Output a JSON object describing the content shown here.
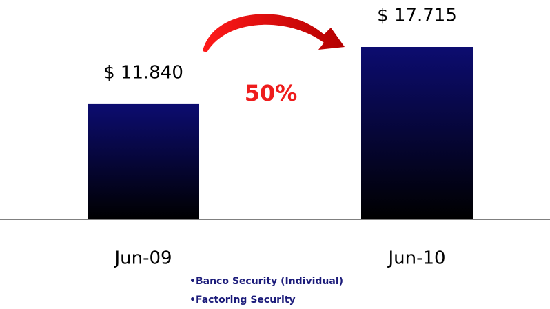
{
  "chart_data": {
    "type": "bar",
    "categories": [
      "Jun-09",
      "Jun-10"
    ],
    "values": [
      11840,
      17715
    ],
    "value_labels": [
      "$ 11.840",
      "$ 17.715"
    ],
    "color": "#0c0c70",
    "annotation": "50%",
    "notes": [
      "•Banco Security (Individual)",
      "•Factoring Security"
    ]
  }
}
